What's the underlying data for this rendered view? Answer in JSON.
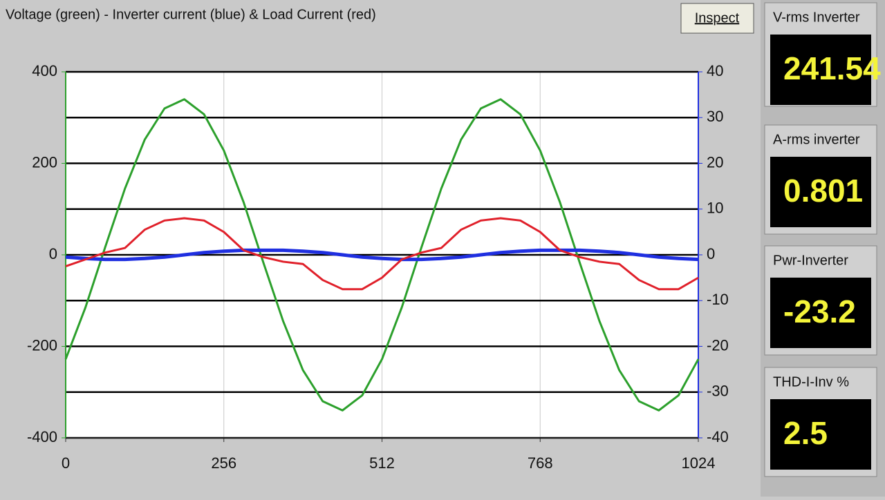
{
  "chart_data": {
    "type": "line",
    "title": "Voltage (green) - Inverter current (blue) & Load Current (red)",
    "x": [
      0,
      32,
      64,
      96,
      128,
      160,
      192,
      224,
      256,
      288,
      320,
      352,
      384,
      416,
      448,
      480,
      512,
      544,
      576,
      608,
      640,
      672,
      704,
      736,
      768,
      800,
      832,
      864,
      896,
      928,
      960,
      992,
      1024
    ],
    "series": [
      {
        "color": "#2ca02c",
        "values": [
          -228,
          -115,
          17,
          145,
          252,
          320,
          340,
          307,
          228,
          115,
          -17,
          -145,
          -252,
          -320,
          -340,
          -307,
          -228,
          -115,
          17,
          145,
          252,
          320,
          340,
          307,
          228,
          115,
          -17,
          -145,
          -252,
          -320,
          -340,
          -307,
          -228
        ]
      },
      {
        "color": "#1f2fe0",
        "axis": "y2",
        "values": [
          -0.5,
          -0.8,
          -1,
          -1,
          -0.8,
          -0.5,
          0,
          0.5,
          0.8,
          1,
          1,
          1,
          0.8,
          0.5,
          0,
          -0.5,
          -0.8,
          -1,
          -1,
          -0.8,
          -0.5,
          0,
          0.5,
          0.8,
          1,
          1,
          1,
          0.8,
          0.5,
          0,
          -0.5,
          -0.8,
          -1
        ]
      },
      {
        "color": "#e0202a",
        "axis": "y2",
        "values": [
          -2.5,
          -1,
          0.5,
          1.5,
          5.5,
          7.5,
          8,
          7.5,
          5,
          1,
          -0.5,
          -1.5,
          -2,
          -5.5,
          -7.5,
          -7.5,
          -5,
          -1,
          0.5,
          1.5,
          5.5,
          7.5,
          8,
          7.5,
          5,
          1,
          -0.5,
          -1.5,
          -2,
          -5.5,
          -7.5,
          -7.5,
          -5
        ]
      }
    ],
    "xlim": [
      0,
      1024
    ],
    "xticks": [
      0,
      256,
      512,
      768,
      1024
    ],
    "ylim": [
      -400,
      400
    ],
    "yticks": [
      -400,
      -200,
      0,
      200,
      400
    ],
    "y2lim": [
      -40,
      40
    ],
    "y2ticks": [
      -40,
      -30,
      -20,
      -10,
      0,
      10,
      20,
      30,
      40
    ],
    "grid": true
  },
  "panel": {
    "button": "Inspect",
    "meters": [
      {
        "label": "V-rms Inverter",
        "value": 241.54
      },
      {
        "label": "A-rms inverter",
        "value": 0.801
      },
      {
        "label": "Pwr-Inverter",
        "value": -23.2
      },
      {
        "label": "THD-I-Inv  %",
        "value": 2.5
      }
    ]
  }
}
